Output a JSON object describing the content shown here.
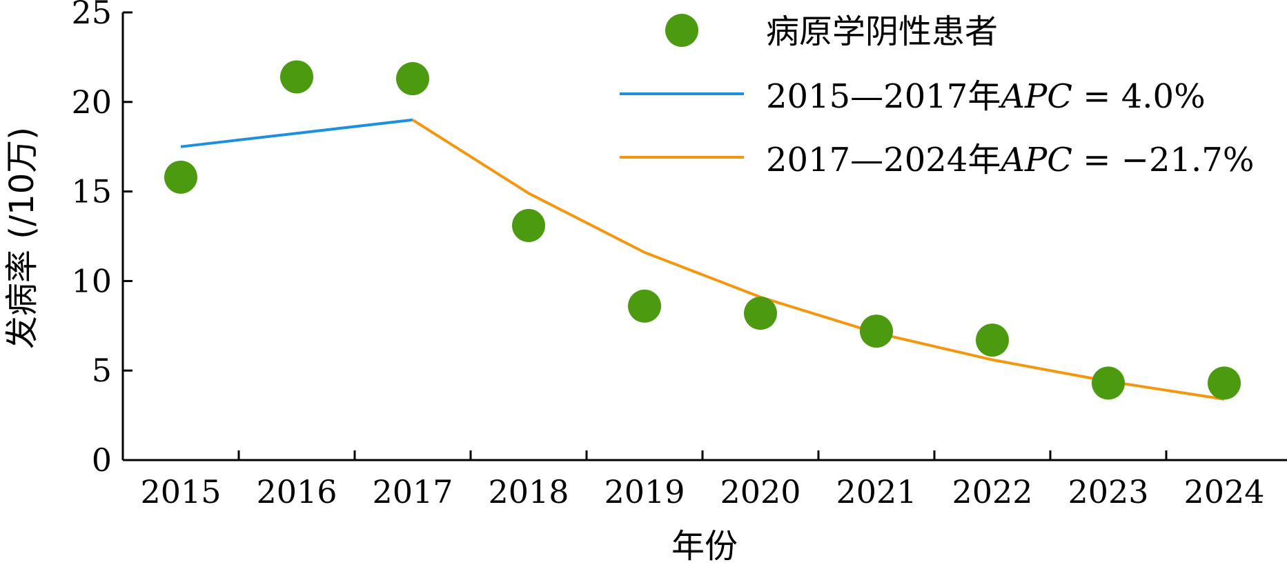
{
  "chart_data": {
    "type": "scatter",
    "xlabel": "年份",
    "ylabel": "发病率 (/10万)",
    "categories": [
      "2015",
      "2016",
      "2017",
      "2018",
      "2019",
      "2020",
      "2021",
      "2022",
      "2023",
      "2024"
    ],
    "yticks": [
      "0",
      "5",
      "10",
      "15",
      "20",
      "25"
    ],
    "ylim": [
      0,
      25
    ],
    "grid": false,
    "legend_position": "top-right",
    "series": [
      {
        "name": "病原学阴性患者",
        "kind": "scatter",
        "color": "#4c9a0f",
        "x": [
          "2015",
          "2016",
          "2017",
          "2018",
          "2019",
          "2020",
          "2021",
          "2022",
          "2023",
          "2024"
        ],
        "y": [
          15.8,
          21.4,
          21.3,
          13.1,
          8.6,
          8.2,
          7.2,
          6.7,
          4.3,
          4.3
        ]
      },
      {
        "name": "2015—2017年APC = 4.0%",
        "kind": "line",
        "color": "#1b8fe0",
        "x": [
          "2015",
          "2016",
          "2017"
        ],
        "y": [
          17.5,
          18.25,
          19.0
        ]
      },
      {
        "name": "2017—2024年APC = −21.7%",
        "kind": "line",
        "color": "#f5960f",
        "x": [
          "2017",
          "2018",
          "2019",
          "2020",
          "2021",
          "2022",
          "2023",
          "2024"
        ],
        "y": [
          19.0,
          14.9,
          11.6,
          9.1,
          7.1,
          5.6,
          4.4,
          3.4
        ]
      }
    ],
    "legend": [
      {
        "kind": "marker",
        "text": "病原学阴性患者",
        "color": "#4c9a0f"
      },
      {
        "kind": "line",
        "range": "2015—2017",
        "unit": "年",
        "apc_label": "APC",
        "apc_value": " = 4.0%",
        "color": "#1b8fe0"
      },
      {
        "kind": "line",
        "range": "2017—2024",
        "unit": "年",
        "apc_label": "APC",
        "apc_value": " = −21.7%",
        "color": "#f5960f"
      }
    ]
  }
}
